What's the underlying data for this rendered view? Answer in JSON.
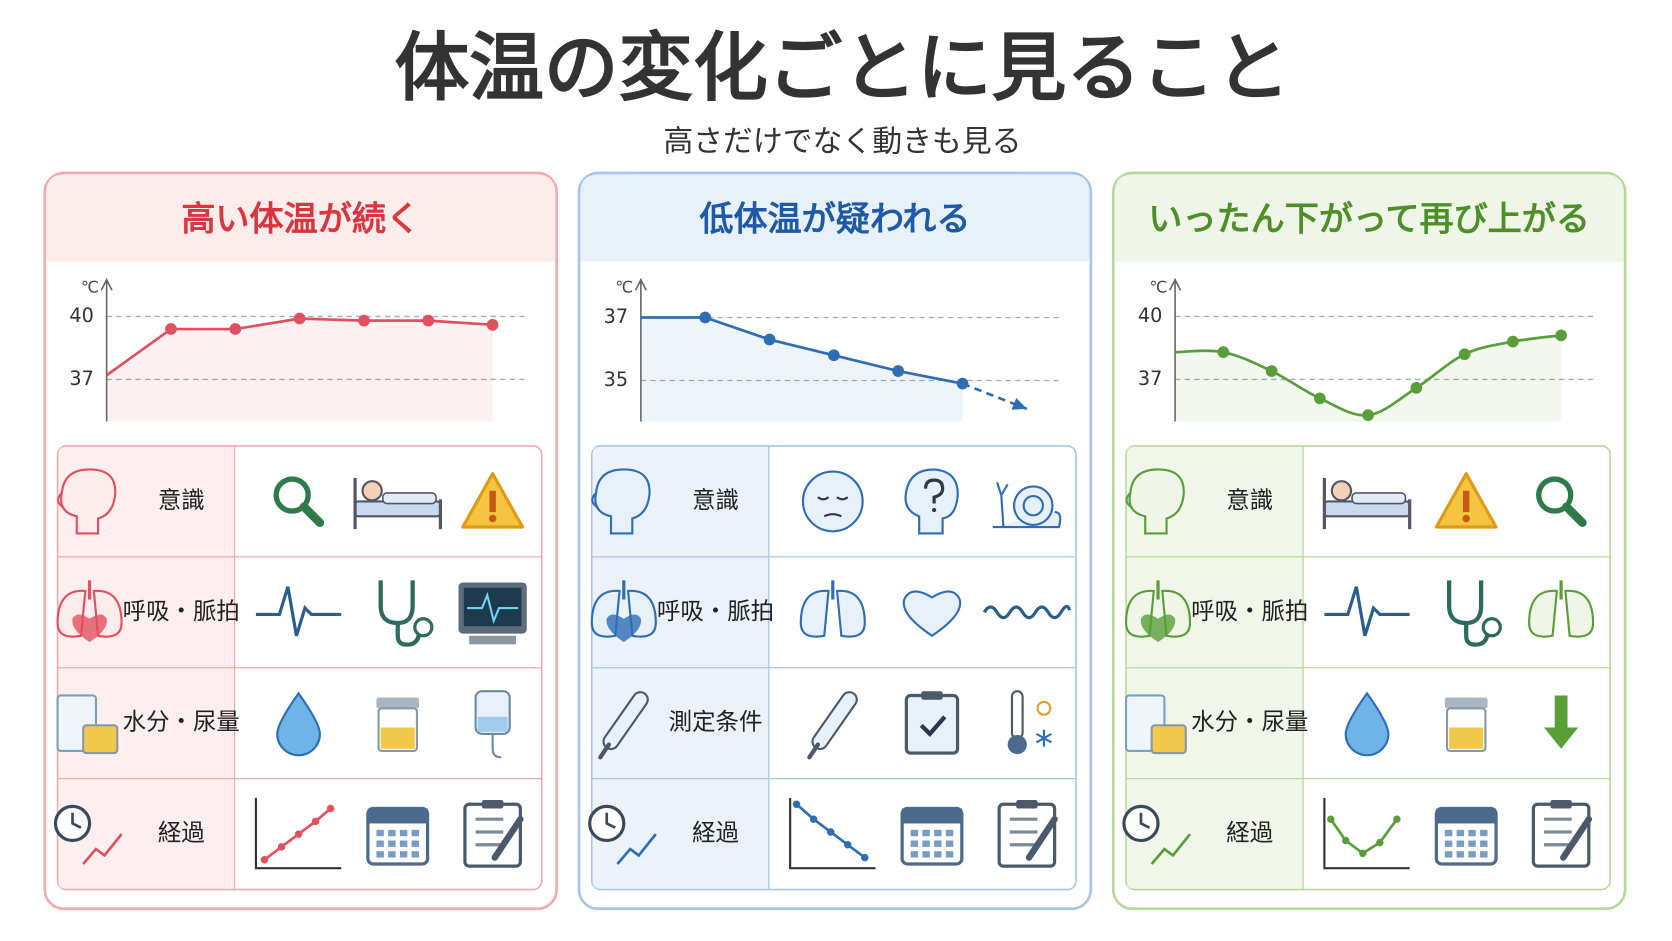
{
  "title": "体温の変化ごとに見ること",
  "subtitle": "高さだけでなく動きも見る",
  "panels": [
    {
      "heading": "高い体温が続く",
      "color": "#e0505f",
      "chart": {
        "type": "line",
        "y_unit": "℃",
        "ylim": [
          35,
          41.6
        ],
        "yticks": [
          37,
          40
        ],
        "grid": true,
        "series": [
          {
            "color": "#e0505f",
            "values": [
              37.2,
              39.4,
              39.4,
              39.9,
              39.8,
              39.8,
              39.6
            ]
          }
        ]
      },
      "rows": [
        {
          "label": "意識"
        },
        {
          "label": "呼吸・脈拍"
        },
        {
          "label": "水分・尿量"
        },
        {
          "label": "経過"
        }
      ]
    },
    {
      "heading": "低体温が疑われる",
      "color": "#2f6db5",
      "chart": {
        "type": "line",
        "y_unit": "℃",
        "ylim": [
          33.7,
          38.1
        ],
        "yticks": [
          35,
          37
        ],
        "grid": true,
        "series": [
          {
            "color": "#2f6db5",
            "values": [
              37.0,
              37.0,
              36.3,
              35.8,
              35.3,
              34.9,
              null
            ]
          },
          {
            "color": "#2f6db5",
            "dashed": true,
            "values": [
              null,
              null,
              null,
              null,
              null,
              34.9,
              34.1
            ]
          }
        ]
      },
      "rows": [
        {
          "label": "意識"
        },
        {
          "label": "呼吸・脈拍"
        },
        {
          "label": "測定条件"
        },
        {
          "label": "経過"
        }
      ]
    },
    {
      "heading": "いったん下がって再び上がる",
      "color": "#5a9e3a",
      "chart": {
        "type": "line",
        "y_unit": "℃",
        "ylim": [
          35,
          41.6
        ],
        "yticks": [
          37,
          40
        ],
        "grid": true,
        "smooth": true,
        "series": [
          {
            "color": "#5a9e3a",
            "values": [
              38.3,
              38.3,
              37.4,
              36.1,
              35.3,
              36.6,
              38.2,
              38.8,
              39.1
            ]
          }
        ]
      },
      "rows": [
        {
          "label": "意識"
        },
        {
          "label": "呼吸・脈拍"
        },
        {
          "label": "水分・尿量"
        },
        {
          "label": "経過"
        }
      ]
    }
  ]
}
